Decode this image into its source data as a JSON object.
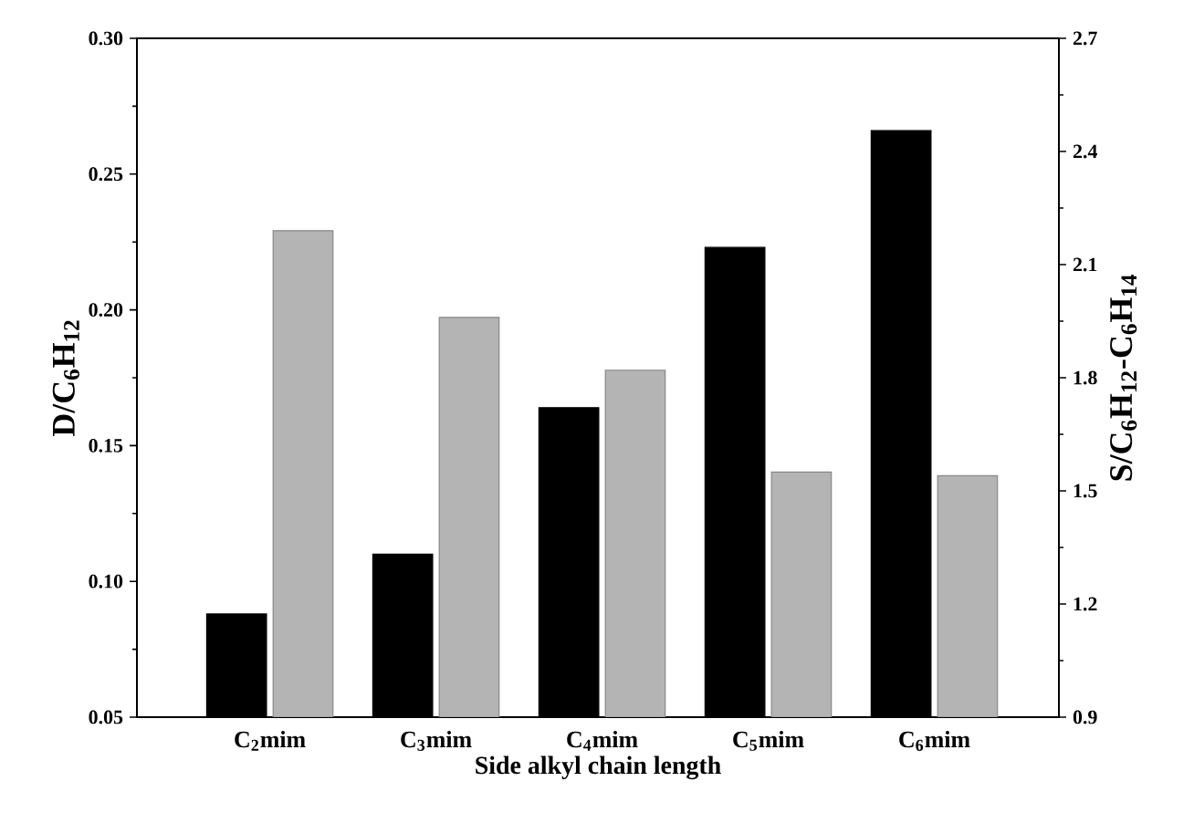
{
  "chart_data": {
    "type": "bar",
    "categories": [
      "C$_{2}$mim",
      "C$_{3}$mim",
      "C$_{4}$mim",
      "C$_{5}$mim",
      "C$_{6}$mim"
    ],
    "xlabel": "Side alkyl chain length",
    "ylabel": "D/C$_{6}$H$_{12}$",
    "y2label": "S/C$_{6}$H$_{12}$-C$_{6}$H$_{14}$",
    "series": [
      {
        "color": "#000000",
        "values": [
          0.088,
          0.11,
          0.164,
          0.223,
          0.266
        ]
      },
      {
        "color": "#b4b4b4",
        "axis": "y2",
        "values": [
          2.19,
          1.96,
          1.82,
          1.55,
          1.54
        ]
      }
    ],
    "ylim": [
      0.05,
      0.3
    ],
    "yticks": [
      {
        "value": 0.05,
        "label": "0.05"
      },
      {
        "value": 0.1,
        "label": "0.10"
      },
      {
        "value": 0.15,
        "label": "0.15"
      },
      {
        "value": 0.2,
        "label": "0.20"
      },
      {
        "value": 0.25,
        "label": "0.25"
      },
      {
        "value": 0.3,
        "label": "0.30"
      }
    ],
    "y2lim": [
      0.9,
      2.7
    ],
    "y2ticks": [
      0.9,
      1.2,
      1.5,
      1.8,
      2.1,
      2.4,
      2.7
    ]
  }
}
